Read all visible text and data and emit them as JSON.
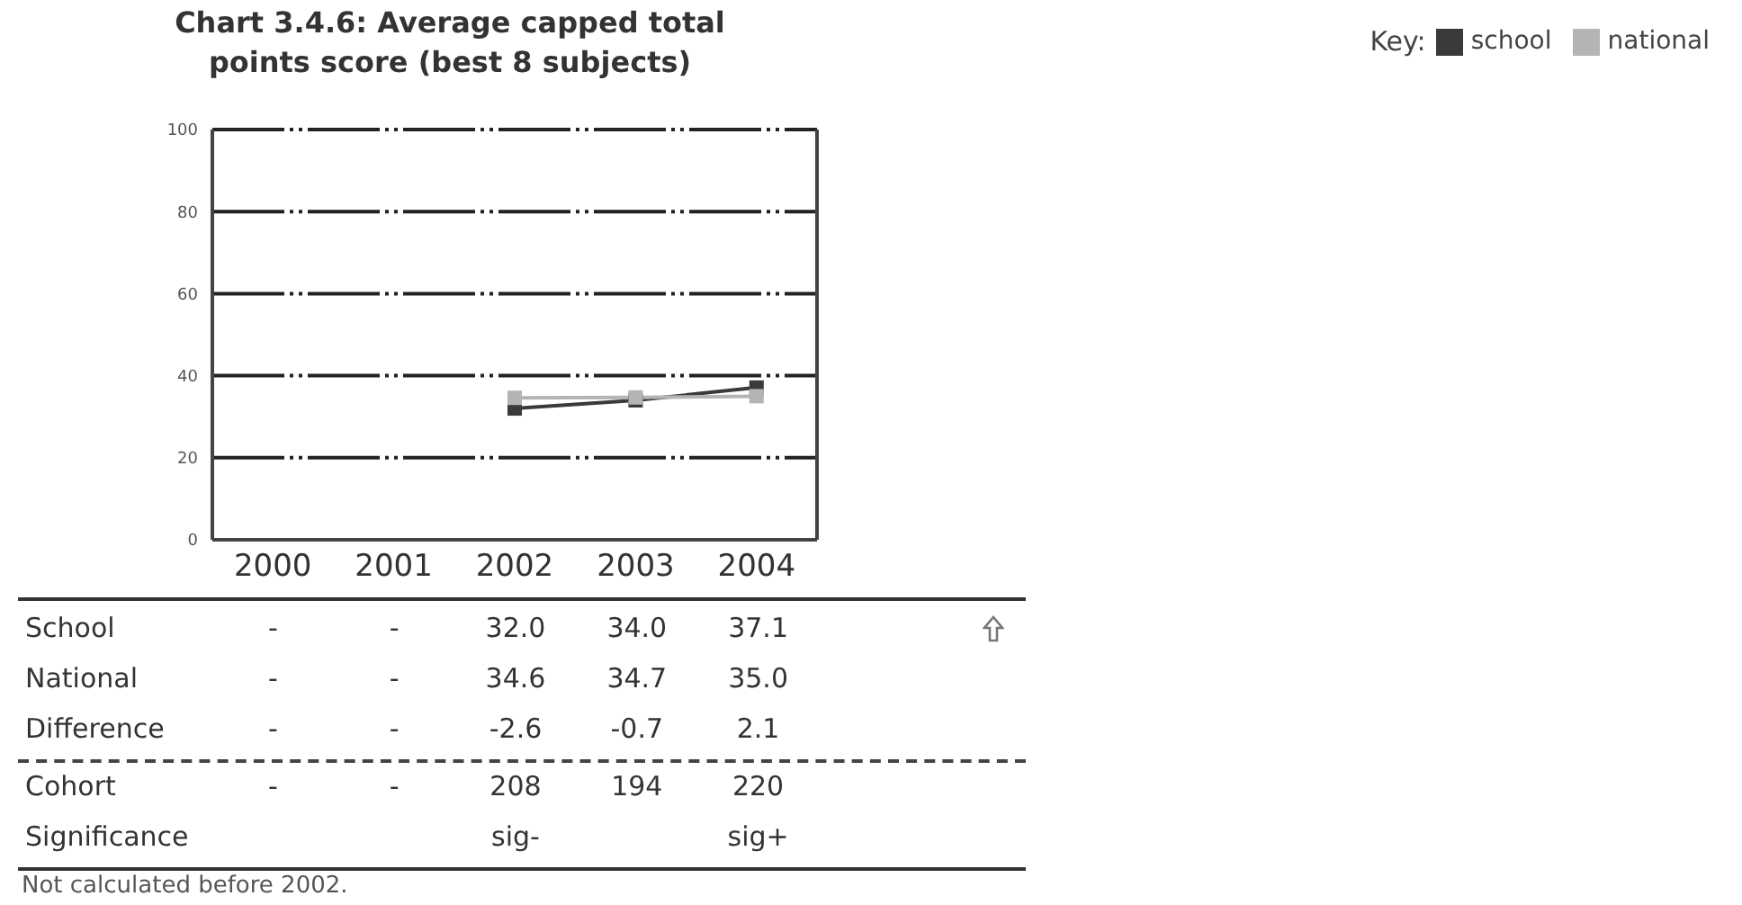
{
  "chart_data": {
    "type": "line",
    "title": "Chart 3.4.6: Average capped total points score (best 8 subjects)",
    "categories": [
      "2000",
      "2001",
      "2002",
      "2003",
      "2004"
    ],
    "series": [
      {
        "name": "school",
        "color": "#3a3a3a",
        "values": [
          null,
          null,
          32.0,
          34.0,
          37.1
        ],
        "value_labels": [
          "-",
          "-",
          "32.0",
          "34.0",
          "37.1"
        ]
      },
      {
        "name": "national",
        "color": "#b4b4b4",
        "values": [
          null,
          null,
          34.6,
          34.7,
          35.0
        ],
        "value_labels": [
          "-",
          "-",
          "34.6",
          "34.7",
          "35.0"
        ]
      }
    ],
    "ylim": [
      0,
      100
    ],
    "yticks": [
      0,
      20,
      40,
      60,
      80,
      100
    ],
    "grid": "y",
    "legend": "top right",
    "legend_title": "Key:",
    "marker": "square",
    "line_style": "solid",
    "annotations": [
      "School",
      "National",
      "Difference",
      "-",
      "-",
      "-2.6",
      "-0.7",
      "2.1",
      "Cohort",
      "-",
      "-",
      "208",
      "194",
      "220",
      "Significance",
      null,
      null,
      "sig-",
      null,
      "sig+",
      "Not calculated before 2002."
    ]
  }
}
